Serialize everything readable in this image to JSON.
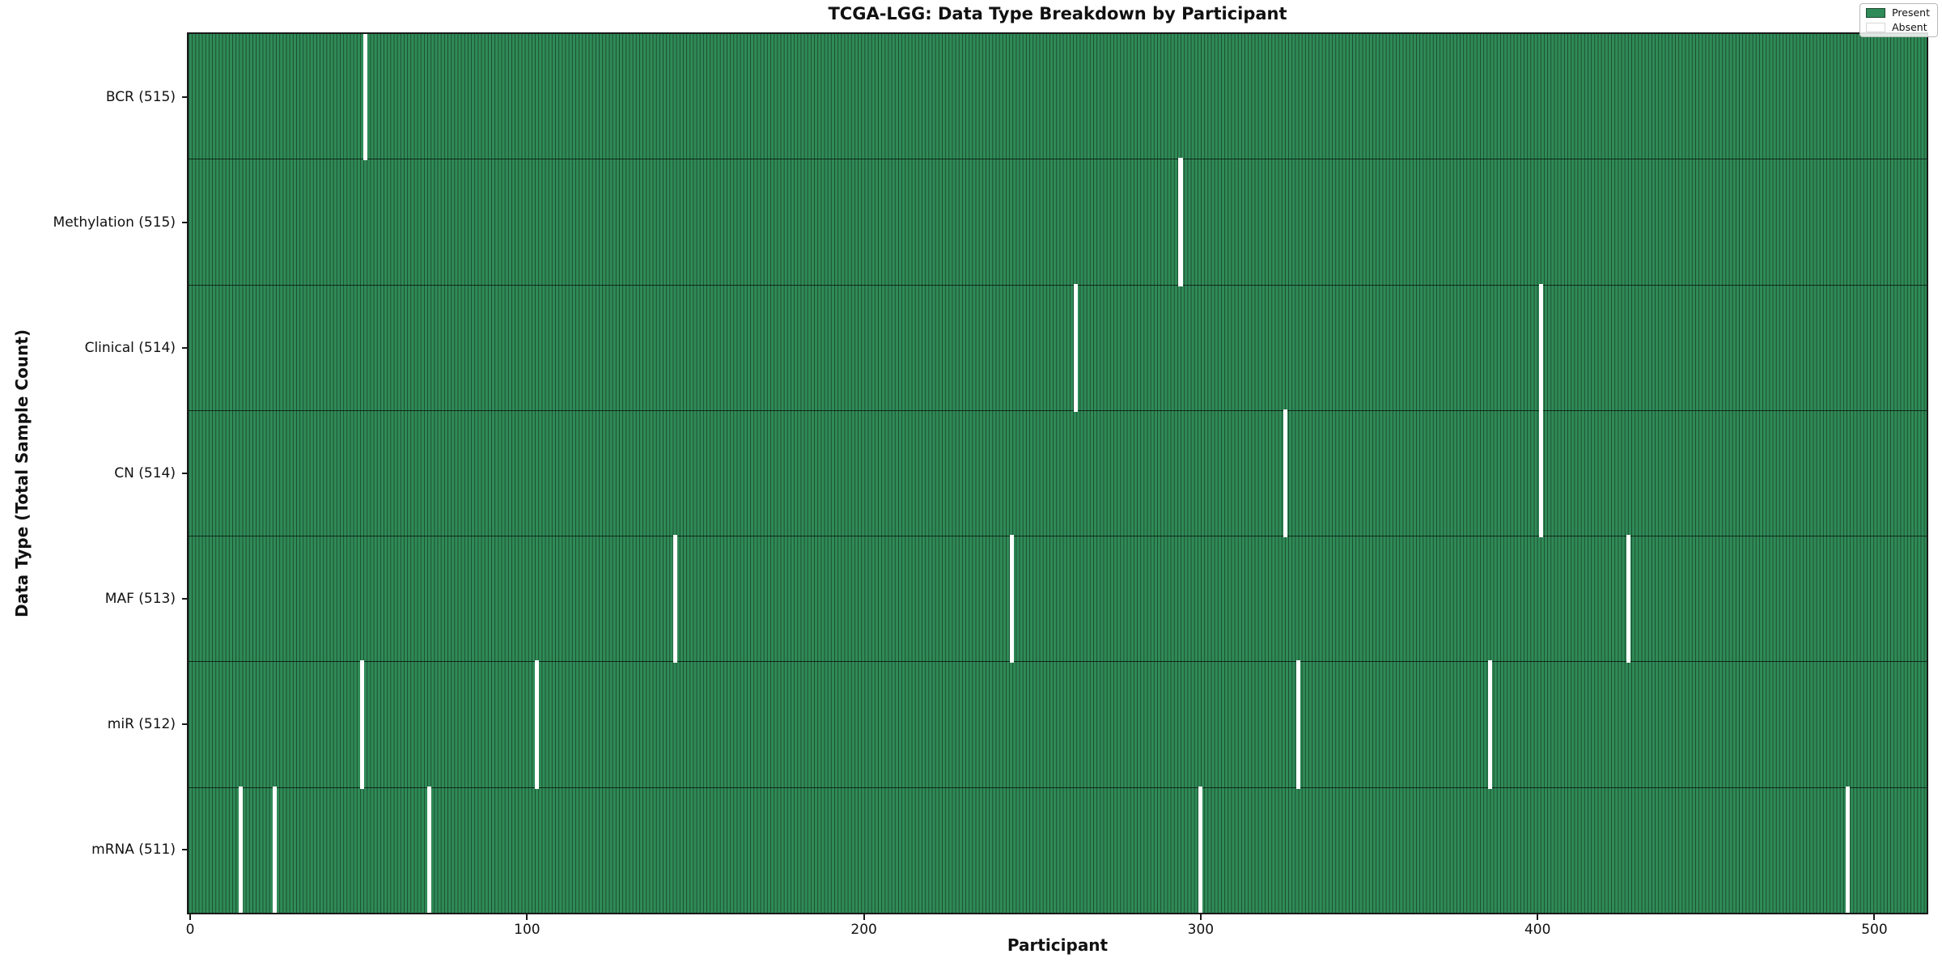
{
  "figure": {
    "title": "TCGA-LGG: Data Type Breakdown by Participant",
    "xlabel": "Participant",
    "ylabel": "Data Type (Total Sample Count)"
  },
  "legend": {
    "present_label": "Present",
    "absent_label": "Absent"
  },
  "colors": {
    "present": "#2f8b57",
    "present_edge": "#1d4a30",
    "absent": "#ffffff",
    "axes_frame": "#1a1a1a"
  },
  "chart_data": {
    "type": "heatmap",
    "title": "TCGA-LGG: Data Type Breakdown by Participant",
    "xlabel": "Participant",
    "ylabel": "Data Type (Total Sample Count)",
    "legend_entries": [
      "Present",
      "Absent"
    ],
    "legend_position": "upper right",
    "grid": false,
    "n_participants": 516,
    "x_ticks": [
      0,
      100,
      200,
      300,
      400,
      500
    ],
    "x_range": [
      0,
      515
    ],
    "rows": [
      {
        "label": "BCR (515)",
        "data_type": "BCR",
        "present_count": 515,
        "absent_participants": [
          52
        ]
      },
      {
        "label": "Methylation (515)",
        "data_type": "Methylation",
        "present_count": 515,
        "absent_participants": [
          294
        ]
      },
      {
        "label": "Clinical (514)",
        "data_type": "Clinical",
        "present_count": 514,
        "absent_participants": [
          263,
          401
        ]
      },
      {
        "label": "CN (514)",
        "data_type": "CN",
        "present_count": 514,
        "absent_participants": [
          325,
          401
        ]
      },
      {
        "label": "MAF (513)",
        "data_type": "MAF",
        "present_count": 513,
        "absent_participants": [
          144,
          244,
          427
        ]
      },
      {
        "label": "miR (512)",
        "data_type": "miR",
        "present_count": 512,
        "absent_participants": [
          51,
          103,
          329,
          386
        ]
      },
      {
        "label": "mRNA (511)",
        "data_type": "mRNA",
        "present_count": 511,
        "absent_participants": [
          15,
          25,
          71,
          300,
          492
        ]
      }
    ]
  }
}
